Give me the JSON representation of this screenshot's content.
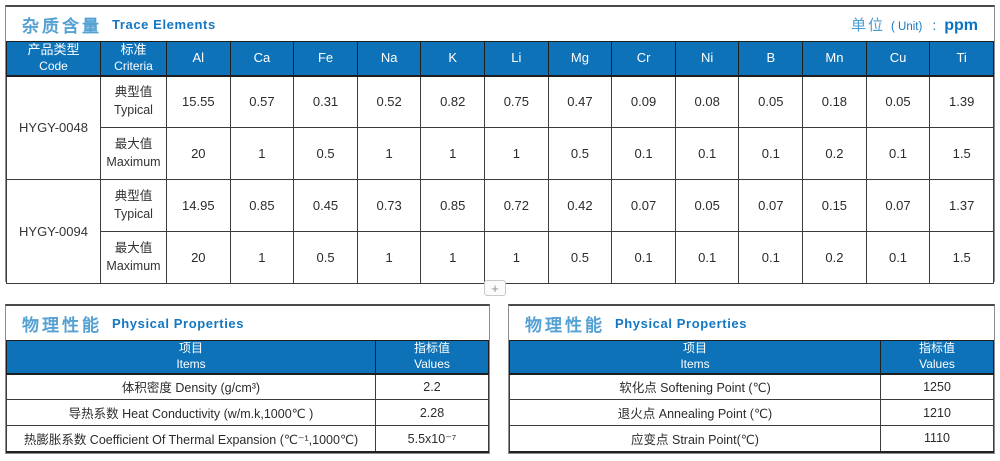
{
  "colors": {
    "header_bg": "#0e72b8",
    "title_zh_blue": "#55a1d3",
    "title_en_blue": "#1377c2",
    "unit_blue": "#0a74c4",
    "cell_border": "#3c3c3c"
  },
  "trace_section": {
    "title_zh": "杂质含量",
    "title_en": "Trace Elements",
    "unit_label_zh": "单位",
    "unit_label_paren": "( Unit)",
    "unit_colon": ":",
    "unit_value": "ppm",
    "col_code_zh": "产品类型",
    "col_code_en": "Code",
    "col_criteria_zh": "标准",
    "col_criteria_en": "Criteria",
    "elements": [
      "Al",
      "Ca",
      "Fe",
      "Na",
      "K",
      "Li",
      "Mg",
      "Cr",
      "Ni",
      "B",
      "Mn",
      "Cu",
      "Ti"
    ],
    "products": [
      {
        "code": "HYGY-0048",
        "rows": [
          {
            "type_zh": "典型值",
            "type_en": "Typical",
            "values": [
              "15.55",
              "0.57",
              "0.31",
              "0.52",
              "0.82",
              "0.75",
              "0.47",
              "0.09",
              "0.08",
              "0.05",
              "0.18",
              "0.05",
              "1.39"
            ]
          },
          {
            "type_zh": "最大值",
            "type_en": "Maximum",
            "values": [
              "20",
              "1",
              "0.5",
              "1",
              "1",
              "1",
              "0.5",
              "0.1",
              "0.1",
              "0.1",
              "0.2",
              "0.1",
              "1.5"
            ]
          }
        ]
      },
      {
        "code": "HYGY-0094",
        "rows": [
          {
            "type_zh": "典型值",
            "type_en": "Typical",
            "values": [
              "14.95",
              "0.85",
              "0.45",
              "0.73",
              "0.85",
              "0.72",
              "0.42",
              "0.07",
              "0.05",
              "0.07",
              "0.15",
              "0.07",
              "1.37"
            ]
          },
          {
            "type_zh": "最大值",
            "type_en": "Maximum",
            "values": [
              "20",
              "1",
              "0.5",
              "1",
              "1",
              "1",
              "0.5",
              "0.1",
              "0.1",
              "0.1",
              "0.2",
              "0.1",
              "1.5"
            ]
          }
        ]
      }
    ]
  },
  "expand_button": {
    "label": "+"
  },
  "physical_sections": [
    {
      "title_zh": "物理性能",
      "title_en": "Physical Properties",
      "col_item_zh": "项目",
      "col_item_en": "Items",
      "col_value_zh": "指标值",
      "col_value_en": "Values",
      "rows": [
        {
          "item": "体积密度 Density (g/cm³)",
          "value": "2.2"
        },
        {
          "item": "导热系数 Heat Conductivity (w/m.k,1000℃ )",
          "value": "2.28"
        },
        {
          "item": "热膨胀系数 Coefficient Of Thermal Expansion (℃⁻¹,1000℃)",
          "value": "5.5x10⁻⁷"
        }
      ]
    },
    {
      "title_zh": "物理性能",
      "title_en": "Physical Properties",
      "col_item_zh": "项目",
      "col_item_en": "Items",
      "col_value_zh": "指标值",
      "col_value_en": "Values",
      "rows": [
        {
          "item": "软化点 Softening Point (℃)",
          "value": "1250"
        },
        {
          "item": "退火点 Annealing Point (℃)",
          "value": "1210"
        },
        {
          "item": "应变点 Strain Point(℃)",
          "value": "1110"
        }
      ]
    }
  ]
}
